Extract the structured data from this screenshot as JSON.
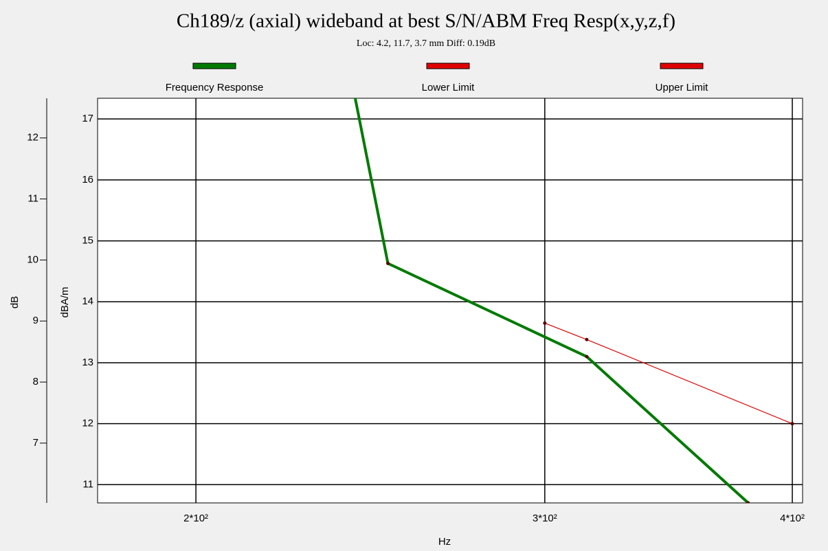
{
  "chart_data": {
    "type": "line",
    "title": "Ch189/z (axial) wideband at best S/N/ABM Freq Resp(x,y,z,f)",
    "subtitle": "Loc: 4.2, 11.7, 3.7 mm Diff: 0.19dB",
    "xlabel": "Hz",
    "ylabel": "dBA/m",
    "y2label": "dB",
    "xscale": "log",
    "xlim": [
      178.4,
      404.8
    ],
    "xticks": [
      {
        "value": 200,
        "label": "2*10²"
      },
      {
        "value": 300,
        "label": "3*10²"
      },
      {
        "value": 400,
        "label": "4*10²"
      }
    ],
    "ylim": [
      10.7,
      17.34
    ],
    "yticks": [
      11,
      12,
      13,
      14,
      15,
      16,
      17
    ],
    "y2lim": [
      6.02,
      12.65
    ],
    "y2ticks": [
      7,
      8,
      9,
      10,
      11,
      12
    ],
    "grid": true,
    "legend": "top",
    "series": [
      {
        "name": "Frequency Response",
        "color": "#007a00",
        "x": [
          240,
          250,
          315,
          380
        ],
        "values": [
          17.54,
          14.63,
          13.1,
          10.7
        ]
      },
      {
        "name": "Lower Limit",
        "color": "#e00000",
        "x": [
          300,
          315,
          400
        ],
        "values": [
          13.65,
          13.38,
          12.0
        ]
      },
      {
        "name": "Upper Limit",
        "color": "#e00000",
        "x": [
          300,
          315,
          400
        ],
        "values": [
          null,
          null,
          null
        ]
      }
    ]
  }
}
